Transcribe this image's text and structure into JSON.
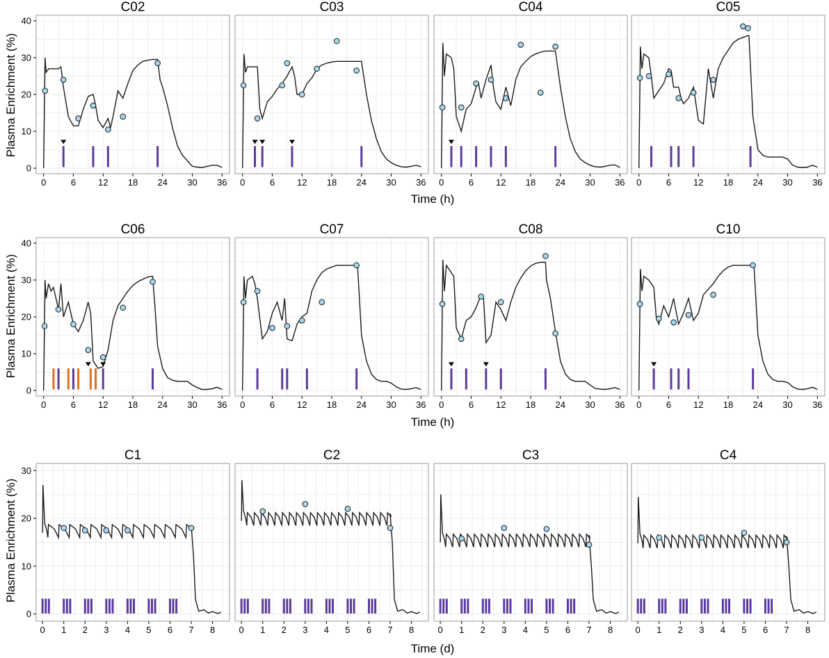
{
  "figure": {
    "ylabel": "Plasma Enrichment (%)",
    "colors": {
      "point": "#a8d7f0",
      "curve": "#1a1a1a",
      "purple": "#5b3a9b",
      "orange": "#e0701d",
      "triangle": "#000000"
    },
    "rows": [
      {
        "xlabel": "Time (h)",
        "xticks": [
          0,
          6,
          12,
          18,
          24,
          30,
          36
        ],
        "xlim": [
          -1.5,
          37.5
        ],
        "ylim": [
          -1.5,
          41.5
        ],
        "yticks": [
          0,
          10,
          20,
          30,
          40
        ]
      },
      {
        "xlabel": "Time (h)",
        "xticks": [
          0,
          6,
          12,
          18,
          24,
          30,
          36
        ],
        "xlim": [
          -1.5,
          37.5
        ],
        "ylim": [
          -1.5,
          41.5
        ],
        "yticks": [
          0,
          10,
          20,
          30,
          40
        ]
      },
      {
        "xlabel": "Time (d)",
        "xticks": [
          0,
          1,
          2,
          3,
          4,
          5,
          6,
          7,
          8
        ],
        "xlim": [
          -0.3,
          8.8
        ],
        "ylim": [
          -1.5,
          31.5
        ],
        "yticks": [
          0,
          10,
          20,
          30
        ]
      }
    ]
  },
  "chart_data": [
    {
      "type": "line",
      "title": "C02",
      "row": 0,
      "col": 0,
      "curve": {
        "x": [
          0,
          0.3,
          0.5,
          1,
          2,
          3,
          3.5,
          4,
          5,
          6,
          7,
          8,
          9,
          10,
          10.5,
          11,
          12,
          13,
          13.5,
          14,
          15,
          16,
          17,
          18,
          19,
          20,
          21,
          22,
          23,
          23.5,
          24,
          25,
          26,
          27,
          28,
          29,
          30,
          31,
          32,
          33,
          34,
          35,
          36
        ],
        "y": [
          0,
          30,
          26,
          27,
          27,
          27,
          27.5,
          22,
          14,
          11.5,
          11.5,
          16,
          19.5,
          20,
          17,
          13,
          11,
          13.5,
          11,
          14,
          21,
          19,
          23,
          26.5,
          28,
          29,
          29.3,
          29.5,
          29.5,
          24,
          22,
          17,
          11,
          6,
          3.5,
          2,
          0.5,
          0.3,
          0.2,
          0.5,
          0.8,
          0.8,
          0.2
        ]
      },
      "points": {
        "x": [
          0.3,
          4,
          7,
          10,
          13,
          16,
          23
        ],
        "y": [
          21,
          24,
          13.5,
          17,
          10.5,
          14,
          28.5
        ]
      },
      "purple": [
        4,
        10,
        13,
        23
      ],
      "orange": [],
      "triangles": [
        4
      ]
    },
    {
      "type": "line",
      "title": "C03",
      "row": 0,
      "col": 1,
      "curve": {
        "x": [
          0,
          0.3,
          0.6,
          1,
          2,
          3,
          3.5,
          4,
          5,
          6,
          7,
          8,
          9,
          10,
          10.5,
          11,
          12,
          13,
          14,
          15,
          16,
          17,
          18,
          19,
          20,
          21,
          22,
          23,
          24,
          25,
          26,
          27,
          28,
          29,
          30,
          31,
          32,
          33,
          34,
          35,
          36
        ],
        "y": [
          0,
          31,
          26,
          27.5,
          27.5,
          27.5,
          16,
          13.5,
          18,
          19.5,
          21.5,
          23,
          25,
          27.5,
          25,
          20,
          20,
          23,
          24.5,
          27,
          28,
          28.5,
          28.8,
          29,
          29,
          29,
          29,
          29,
          29,
          20,
          13,
          8,
          4.5,
          2.5,
          1.5,
          0.8,
          0.4,
          0.3,
          0.5,
          0.8,
          0.4
        ]
      },
      "points": {
        "x": [
          0.2,
          3,
          8,
          9,
          12,
          15,
          19,
          23
        ],
        "y": [
          22.5,
          13.5,
          22.5,
          28.5,
          20,
          27,
          34.5,
          26.5
        ]
      },
      "purple": [
        2.5,
        4,
        10,
        24
      ],
      "orange": [],
      "triangles": [
        2.5,
        4,
        10
      ]
    },
    {
      "type": "line",
      "title": "C04",
      "row": 0,
      "col": 2,
      "curve": {
        "x": [
          0,
          0.3,
          0.6,
          1,
          2,
          2.5,
          3,
          4,
          5,
          6,
          7,
          7.5,
          8,
          9,
          10,
          10.5,
          11,
          12,
          13,
          14,
          15,
          16,
          17,
          18,
          19,
          20,
          21,
          22,
          23,
          24,
          25,
          26,
          27,
          28,
          29,
          30,
          31,
          32,
          33,
          34,
          35,
          36
        ],
        "y": [
          0,
          34,
          25,
          31,
          30,
          27,
          14,
          10,
          16,
          17.5,
          22,
          23,
          19,
          24,
          28,
          22,
          18,
          16,
          22,
          17,
          24,
          27.5,
          29,
          30.3,
          31,
          31.5,
          31.8,
          31.8,
          31.8,
          22,
          14,
          8,
          4.5,
          2.5,
          1.5,
          0.8,
          0.4,
          0.3,
          0.5,
          0.8,
          0.9,
          0.2
        ]
      },
      "points": {
        "x": [
          0.2,
          4,
          7,
          10,
          13,
          16,
          20,
          23
        ],
        "y": [
          16.5,
          16.5,
          23,
          24,
          19,
          33.5,
          20.5,
          33
        ]
      },
      "purple": [
        2,
        4,
        7,
        10,
        13,
        23
      ],
      "orange": [],
      "triangles": [
        2
      ]
    },
    {
      "type": "line",
      "title": "C05",
      "row": 0,
      "col": 3,
      "curve": {
        "x": [
          0,
          0.3,
          0.6,
          1,
          2,
          2.5,
          3,
          4,
          5,
          6,
          6.5,
          7,
          8,
          8.5,
          9,
          10,
          11,
          12,
          13,
          14,
          15,
          16,
          17,
          18,
          19,
          20,
          21,
          22,
          22.2,
          23,
          24,
          25,
          26,
          27,
          28,
          29,
          30,
          31,
          32,
          33,
          34,
          35,
          36
        ],
        "y": [
          0,
          33,
          27,
          31,
          30,
          25,
          19,
          21,
          23,
          27,
          26.5,
          22,
          22,
          19,
          17.5,
          19,
          22,
          13,
          12,
          27,
          19,
          27,
          30,
          32,
          34,
          35,
          35.5,
          36,
          36,
          14,
          5,
          3.5,
          3,
          3,
          3,
          3,
          2.5,
          0.8,
          0.3,
          0.2,
          0.3,
          0.8,
          0.3
        ]
      },
      "points": {
        "x": [
          0.2,
          2,
          6,
          8,
          11,
          15,
          21,
          22
        ],
        "y": [
          24.5,
          25,
          25.5,
          19,
          20.5,
          24,
          38.5,
          38
        ]
      },
      "purple": [
        2.5,
        6.5,
        8,
        11,
        22.5
      ],
      "orange": [],
      "triangles": []
    },
    {
      "type": "line",
      "title": "C06",
      "row": 1,
      "col": 0,
      "curve": {
        "x": [
          0,
          0.3,
          0.5,
          1,
          1.5,
          2,
          3,
          3.5,
          4,
          5,
          6,
          6.5,
          7,
          8,
          9,
          9.5,
          10,
          11,
          12,
          13,
          14,
          15,
          16,
          17,
          18,
          19,
          20,
          21,
          22,
          22.5,
          23,
          24,
          25,
          26,
          27,
          28,
          29,
          30,
          31,
          32,
          33,
          34,
          35,
          36
        ],
        "y": [
          0,
          30,
          25,
          29,
          27,
          28,
          22,
          29,
          20,
          24,
          18,
          17,
          16,
          19,
          24,
          21,
          8,
          6,
          6.5,
          11,
          19,
          23,
          25,
          27,
          28.5,
          29.5,
          30.2,
          30.8,
          31,
          22,
          12,
          6,
          3.5,
          2.8,
          2.5,
          2.5,
          2.5,
          1.5,
          0.8,
          0.3,
          0.3,
          0.5,
          0.9,
          0.3
        ]
      },
      "points": {
        "x": [
          0.2,
          3,
          6,
          9,
          12,
          16,
          22
        ],
        "y": [
          17.5,
          22,
          18,
          11,
          9,
          22.5,
          29.5
        ]
      },
      "purple": [
        3,
        6,
        10.5,
        12,
        22
      ],
      "orange": [
        2,
        5,
        7,
        9.5,
        10.5
      ],
      "triangles": [
        9,
        12
      ]
    },
    {
      "type": "line",
      "title": "C07",
      "row": 1,
      "col": 1,
      "curve": {
        "x": [
          0,
          0.3,
          0.6,
          1,
          2,
          2.5,
          3,
          4,
          5,
          6,
          7,
          8,
          8.5,
          9,
          10,
          11,
          12,
          13,
          14,
          15,
          16,
          17,
          18,
          19,
          20,
          21,
          22,
          23,
          23.2,
          24,
          25,
          26,
          27,
          28,
          29,
          30,
          31,
          32,
          33,
          34,
          35,
          36
        ],
        "y": [
          0,
          31,
          25,
          30,
          31,
          29,
          25,
          14,
          16,
          21,
          24,
          19,
          25,
          14,
          13.5,
          18,
          20,
          21,
          27,
          30,
          32,
          33,
          33.5,
          34,
          34,
          34,
          34,
          34,
          34,
          15,
          8,
          4.5,
          3,
          2.5,
          2.5,
          2,
          1,
          0.4,
          0.3,
          0.5,
          0.8,
          0.3
        ]
      },
      "points": {
        "x": [
          0.2,
          3,
          6,
          9,
          12,
          16,
          23
        ],
        "y": [
          24,
          27,
          17,
          17.5,
          19,
          24,
          34
        ]
      },
      "purple": [
        3,
        8,
        9,
        13,
        23
      ],
      "orange": [],
      "triangles": []
    },
    {
      "type": "line",
      "title": "C08",
      "row": 1,
      "col": 2,
      "curve": {
        "x": [
          0,
          0.3,
          0.6,
          1,
          2,
          2.5,
          3,
          4,
          5,
          6,
          7,
          8,
          8.5,
          9,
          10,
          11,
          12,
          13,
          14,
          15,
          16,
          17,
          18,
          19,
          20,
          21,
          21.2,
          22,
          23,
          24,
          25,
          26,
          27,
          28,
          29,
          30,
          31,
          32,
          33,
          34,
          35,
          36
        ],
        "y": [
          0,
          35.5,
          27,
          34,
          32,
          31,
          17,
          14,
          19,
          20,
          22.5,
          26,
          25,
          13,
          15,
          24,
          22,
          19,
          24,
          28,
          30.5,
          32.5,
          33.8,
          34.5,
          34.8,
          34.8,
          30,
          25,
          16,
          8,
          4.5,
          3,
          2.5,
          2.5,
          2.5,
          1.5,
          0.6,
          0.4,
          0.3,
          0.5,
          0.8,
          0.3
        ]
      },
      "points": {
        "x": [
          0.2,
          4,
          8,
          12,
          21,
          23
        ],
        "y": [
          23.5,
          14,
          25.5,
          24,
          36.5,
          15.5
        ]
      },
      "purple": [
        2,
        5,
        9,
        12,
        21
      ],
      "orange": [],
      "triangles": [
        2,
        9
      ]
    },
    {
      "type": "line",
      "title": "C10",
      "row": 1,
      "col": 3,
      "curve": {
        "x": [
          0,
          0.3,
          0.6,
          1,
          2,
          3,
          3.5,
          4,
          5,
          6,
          7,
          8,
          9,
          10,
          11,
          12,
          13,
          14,
          15,
          16,
          17,
          18,
          19,
          20,
          21,
          22,
          23,
          23.2,
          24,
          25,
          26,
          27,
          28,
          29,
          30,
          31,
          32,
          33,
          34,
          35,
          36
        ],
        "y": [
          0,
          33,
          27,
          31,
          30,
          28,
          20,
          18,
          23,
          20,
          25,
          18,
          21,
          25,
          19,
          21,
          26,
          27.5,
          29,
          31,
          32.5,
          33.5,
          34,
          34,
          34,
          34,
          34,
          34,
          15,
          8,
          4.5,
          3,
          2.5,
          2.5,
          2.2,
          1,
          0.4,
          0.3,
          0.5,
          0.9,
          0.3
        ]
      },
      "points": {
        "x": [
          0.2,
          4,
          7,
          10,
          15,
          23
        ],
        "y": [
          23.5,
          19.5,
          18.5,
          20.5,
          26,
          34
        ]
      },
      "purple": [
        3,
        6.5,
        8,
        10,
        23
      ],
      "orange": [],
      "triangles": [
        3
      ]
    },
    {
      "type": "line",
      "title": "C1",
      "row": 2,
      "col": 0,
      "level": 18.5,
      "peak": 27,
      "cycle": 0.5,
      "points": {
        "x": [
          1,
          2,
          3,
          4,
          7
        ],
        "y": [
          18,
          17.5,
          17.5,
          17.5,
          18
        ]
      },
      "purple": [
        0,
        0.15,
        0.3,
        1,
        1.15,
        1.3,
        2,
        2.15,
        2.3,
        3,
        3.15,
        3.3,
        4,
        4.15,
        4.3,
        5,
        5.15,
        5.3,
        6,
        6.15,
        6.3
      ],
      "orange": [],
      "triangles": []
    },
    {
      "type": "line",
      "title": "C2",
      "row": 2,
      "col": 1,
      "level": 21,
      "peak": 28,
      "cycle": 0.33,
      "points": {
        "x": [
          1,
          3,
          5,
          7
        ],
        "y": [
          21.5,
          23,
          22,
          18
        ]
      },
      "purple": [
        0,
        0.15,
        0.3,
        1,
        1.15,
        1.3,
        2,
        2.15,
        2.3,
        3,
        3.15,
        3.3,
        4,
        4.15,
        4.3,
        5,
        5.15,
        5.3,
        6,
        6.15,
        6.3
      ],
      "orange": [],
      "triangles": []
    },
    {
      "type": "line",
      "title": "C3",
      "row": 2,
      "col": 2,
      "level": 16.5,
      "peak": 25,
      "cycle": 0.33,
      "points": {
        "x": [
          1,
          3,
          5,
          7
        ],
        "y": [
          15.8,
          18,
          17.8,
          14.5
        ]
      },
      "purple": [
        0,
        0.15,
        0.3,
        1,
        1.15,
        1.3,
        2,
        2.15,
        2.3,
        3,
        3.15,
        3.3,
        4,
        4.15,
        4.3,
        5,
        5.15,
        5.3,
        6,
        6.15,
        6.3
      ],
      "orange": [],
      "triangles": []
    },
    {
      "type": "line",
      "title": "C4",
      "row": 2,
      "col": 3,
      "level": 16.3,
      "peak": 24.5,
      "cycle": 0.33,
      "points": {
        "x": [
          1,
          3,
          5,
          7
        ],
        "y": [
          16,
          16,
          17,
          15
        ]
      },
      "purple": [
        0,
        0.15,
        0.3,
        1,
        1.15,
        1.3,
        2,
        2.15,
        2.3,
        3,
        3.15,
        3.3,
        4,
        4.15,
        4.3,
        5,
        5.15,
        5.3,
        6,
        6.15,
        6.3
      ],
      "orange": [],
      "triangles": []
    }
  ]
}
